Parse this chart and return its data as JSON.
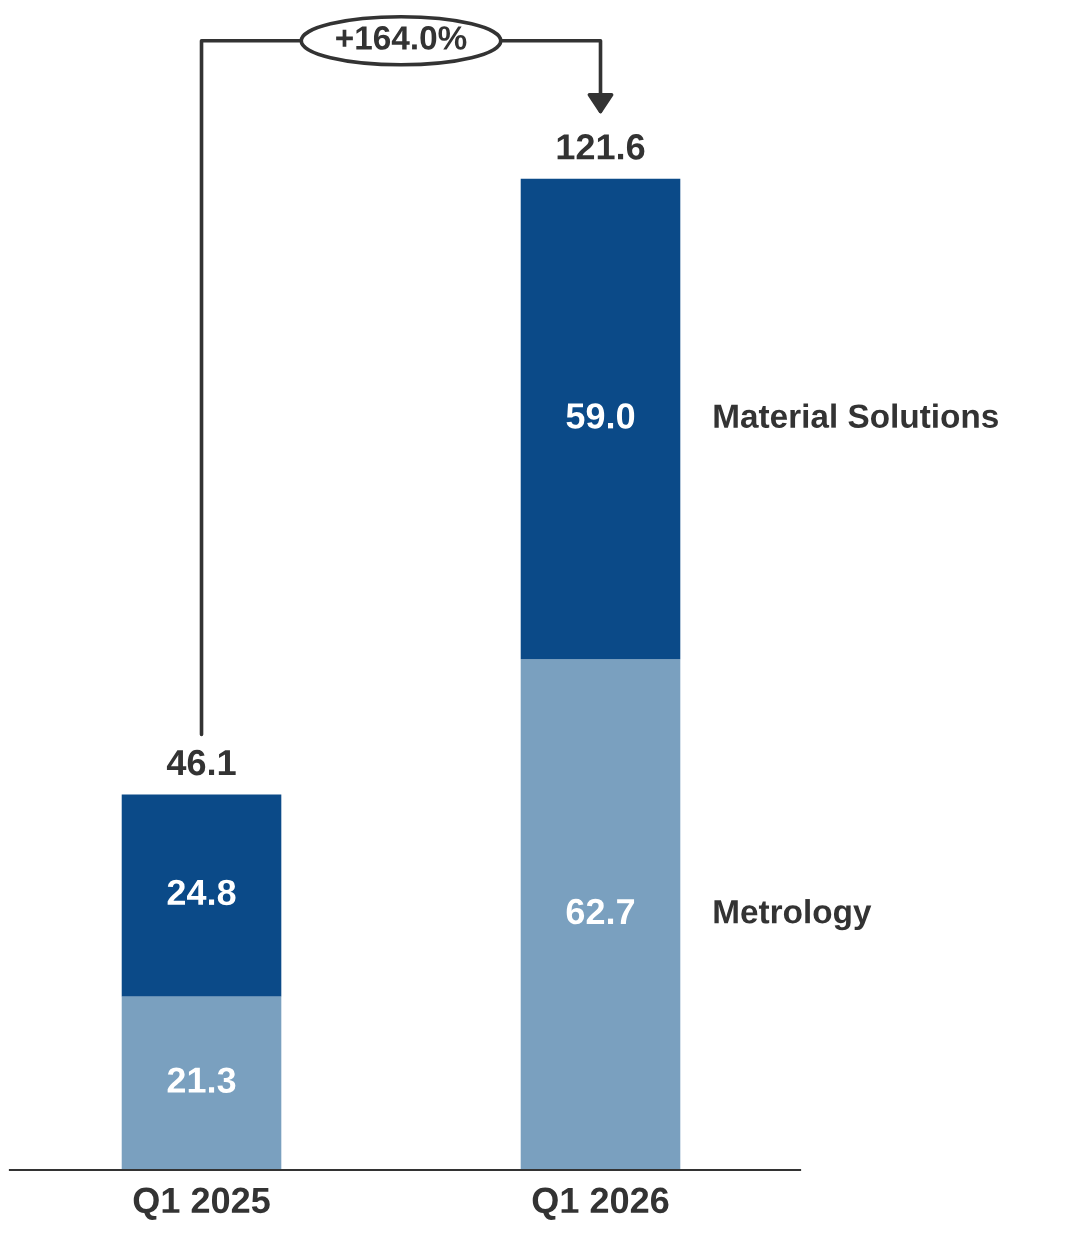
{
  "chart_data": {
    "type": "bar",
    "stacked": true,
    "categories": [
      "Q1 2025",
      "Q1 2026"
    ],
    "series": [
      {
        "name": "Metrology",
        "color": "#7aa0bf",
        "values": [
          21.3,
          62.7
        ],
        "value_labels": [
          "21.3",
          "62.7"
        ]
      },
      {
        "name": "Material Solutions",
        "color": "#0b4a88",
        "values": [
          24.8,
          59.0
        ],
        "value_labels": [
          "24.8",
          "59.0"
        ]
      }
    ],
    "totals": [
      "46.1",
      "121.6"
    ],
    "annotations": [
      "+164.0%"
    ]
  }
}
